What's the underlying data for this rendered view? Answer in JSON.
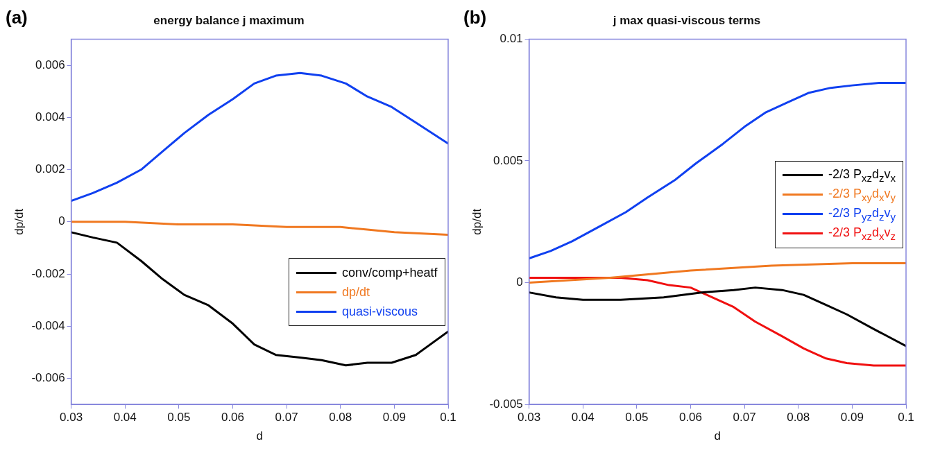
{
  "chart_data": [
    {
      "type": "line",
      "title": "energy balance j maximum",
      "xlabel": "d",
      "ylabel": "dp/dt",
      "annotations": [
        "(a)"
      ],
      "xlim": [
        0.03,
        0.1
      ],
      "xticks": [
        0.03,
        0.04,
        0.05,
        0.06,
        0.07,
        0.08,
        0.09,
        0.1
      ],
      "ylim": [
        -0.007,
        0.007
      ],
      "yticks": [
        -0.006,
        -0.004,
        -0.002,
        0,
        0.002,
        0.004,
        0.006
      ],
      "grid": false,
      "legend": "bottom right",
      "marker": "none",
      "line_style": "solid",
      "series": [
        {
          "name": "conv/comp+heatf",
          "color": "#000000",
          "x": [
            0.03,
            0.034,
            0.0385,
            0.043,
            0.047,
            0.051,
            0.0555,
            0.06,
            0.064,
            0.068,
            0.0725,
            0.0765,
            0.081,
            0.085,
            0.0895,
            0.094,
            0.1
          ],
          "values": [
            -0.0004,
            -0.0006,
            -0.0008,
            -0.0015,
            -0.0022,
            -0.0028,
            -0.0032,
            -0.0039,
            -0.0047,
            -0.0051,
            -0.0052,
            -0.0053,
            -0.0055,
            -0.0054,
            -0.0054,
            -0.0051,
            -0.0042
          ]
        },
        {
          "name": "dp/dt",
          "color": "#f07820",
          "x": [
            0.03,
            0.04,
            0.05,
            0.06,
            0.07,
            0.08,
            0.085,
            0.09,
            0.1
          ],
          "values": [
            0,
            0,
            -0.0001,
            -0.0001,
            -0.0002,
            -0.0002,
            -0.0003,
            -0.0004,
            -0.0005
          ]
        },
        {
          "name": "quasi-viscous",
          "color": "#1040f0",
          "x": [
            0.03,
            0.034,
            0.0385,
            0.043,
            0.047,
            0.051,
            0.0555,
            0.06,
            0.064,
            0.068,
            0.0725,
            0.0765,
            0.081,
            0.085,
            0.0895,
            0.094,
            0.1
          ],
          "values": [
            0.0008,
            0.0011,
            0.0015,
            0.002,
            0.0027,
            0.0034,
            0.0041,
            0.0047,
            0.0053,
            0.0056,
            0.0057,
            0.0056,
            0.0053,
            0.0048,
            0.0044,
            0.0038,
            0.003
          ]
        }
      ]
    },
    {
      "type": "line",
      "title": "j max quasi-viscous terms",
      "xlabel": "d",
      "ylabel": "dp/dt",
      "annotations": [
        "(b)"
      ],
      "xlim": [
        0.03,
        0.1
      ],
      "xticks": [
        0.03,
        0.04,
        0.05,
        0.06,
        0.07,
        0.08,
        0.09,
        0.1
      ],
      "ylim": [
        -0.005,
        0.01
      ],
      "yticks": [
        -0.005,
        0,
        0.005,
        0.01
      ],
      "grid": false,
      "legend": "right",
      "marker": "none",
      "line_style": "solid",
      "series": [
        {
          "name": "-2/3 P$_{xz}$d$_{z}$v$_{x}$",
          "color": "#000000",
          "x": [
            0.03,
            0.035,
            0.04,
            0.047,
            0.055,
            0.062,
            0.068,
            0.072,
            0.077,
            0.081,
            0.085,
            0.089,
            0.094,
            0.1
          ],
          "values": [
            -0.0004,
            -0.0006,
            -0.0007,
            -0.0007,
            -0.0006,
            -0.0004,
            -0.0003,
            -0.0002,
            -0.0003,
            -0.0005,
            -0.0009,
            -0.0013,
            -0.0019,
            -0.0026
          ]
        },
        {
          "name": "-2/3 P$_{xy}$d$_{x}$v$_{y}$",
          "color": "#f07820",
          "x": [
            0.03,
            0.045,
            0.06,
            0.075,
            0.09,
            0.1
          ],
          "values": [
            0,
            0.0002,
            0.0005,
            0.0007,
            0.0008,
            0.0008
          ]
        },
        {
          "name": "-2/3 P$_{yz}$d$_{z}$v$_{y}$",
          "color": "#1040f0",
          "x": [
            0.03,
            0.034,
            0.038,
            0.043,
            0.048,
            0.052,
            0.057,
            0.061,
            0.066,
            0.07,
            0.074,
            0.078,
            0.082,
            0.086,
            0.09,
            0.095,
            0.1
          ],
          "values": [
            0.001,
            0.0013,
            0.0017,
            0.0023,
            0.0029,
            0.0035,
            0.0042,
            0.0049,
            0.0057,
            0.0064,
            0.007,
            0.0074,
            0.0078,
            0.008,
            0.0081,
            0.0082,
            0.0082
          ]
        },
        {
          "name": "-2/3 P$_{xz}$d$_{x}$v$_{z}$",
          "color": "#f01010",
          "x": [
            0.03,
            0.04,
            0.047,
            0.052,
            0.056,
            0.06,
            0.064,
            0.068,
            0.072,
            0.077,
            0.081,
            0.085,
            0.089,
            0.094,
            0.1
          ],
          "values": [
            0.0002,
            0.0002,
            0.0002,
            0.0001,
            -0.0001,
            -0.0002,
            -0.0006,
            -0.001,
            -0.0016,
            -0.0022,
            -0.0027,
            -0.0031,
            -0.0033,
            -0.0034,
            -0.0034
          ]
        }
      ]
    }
  ]
}
